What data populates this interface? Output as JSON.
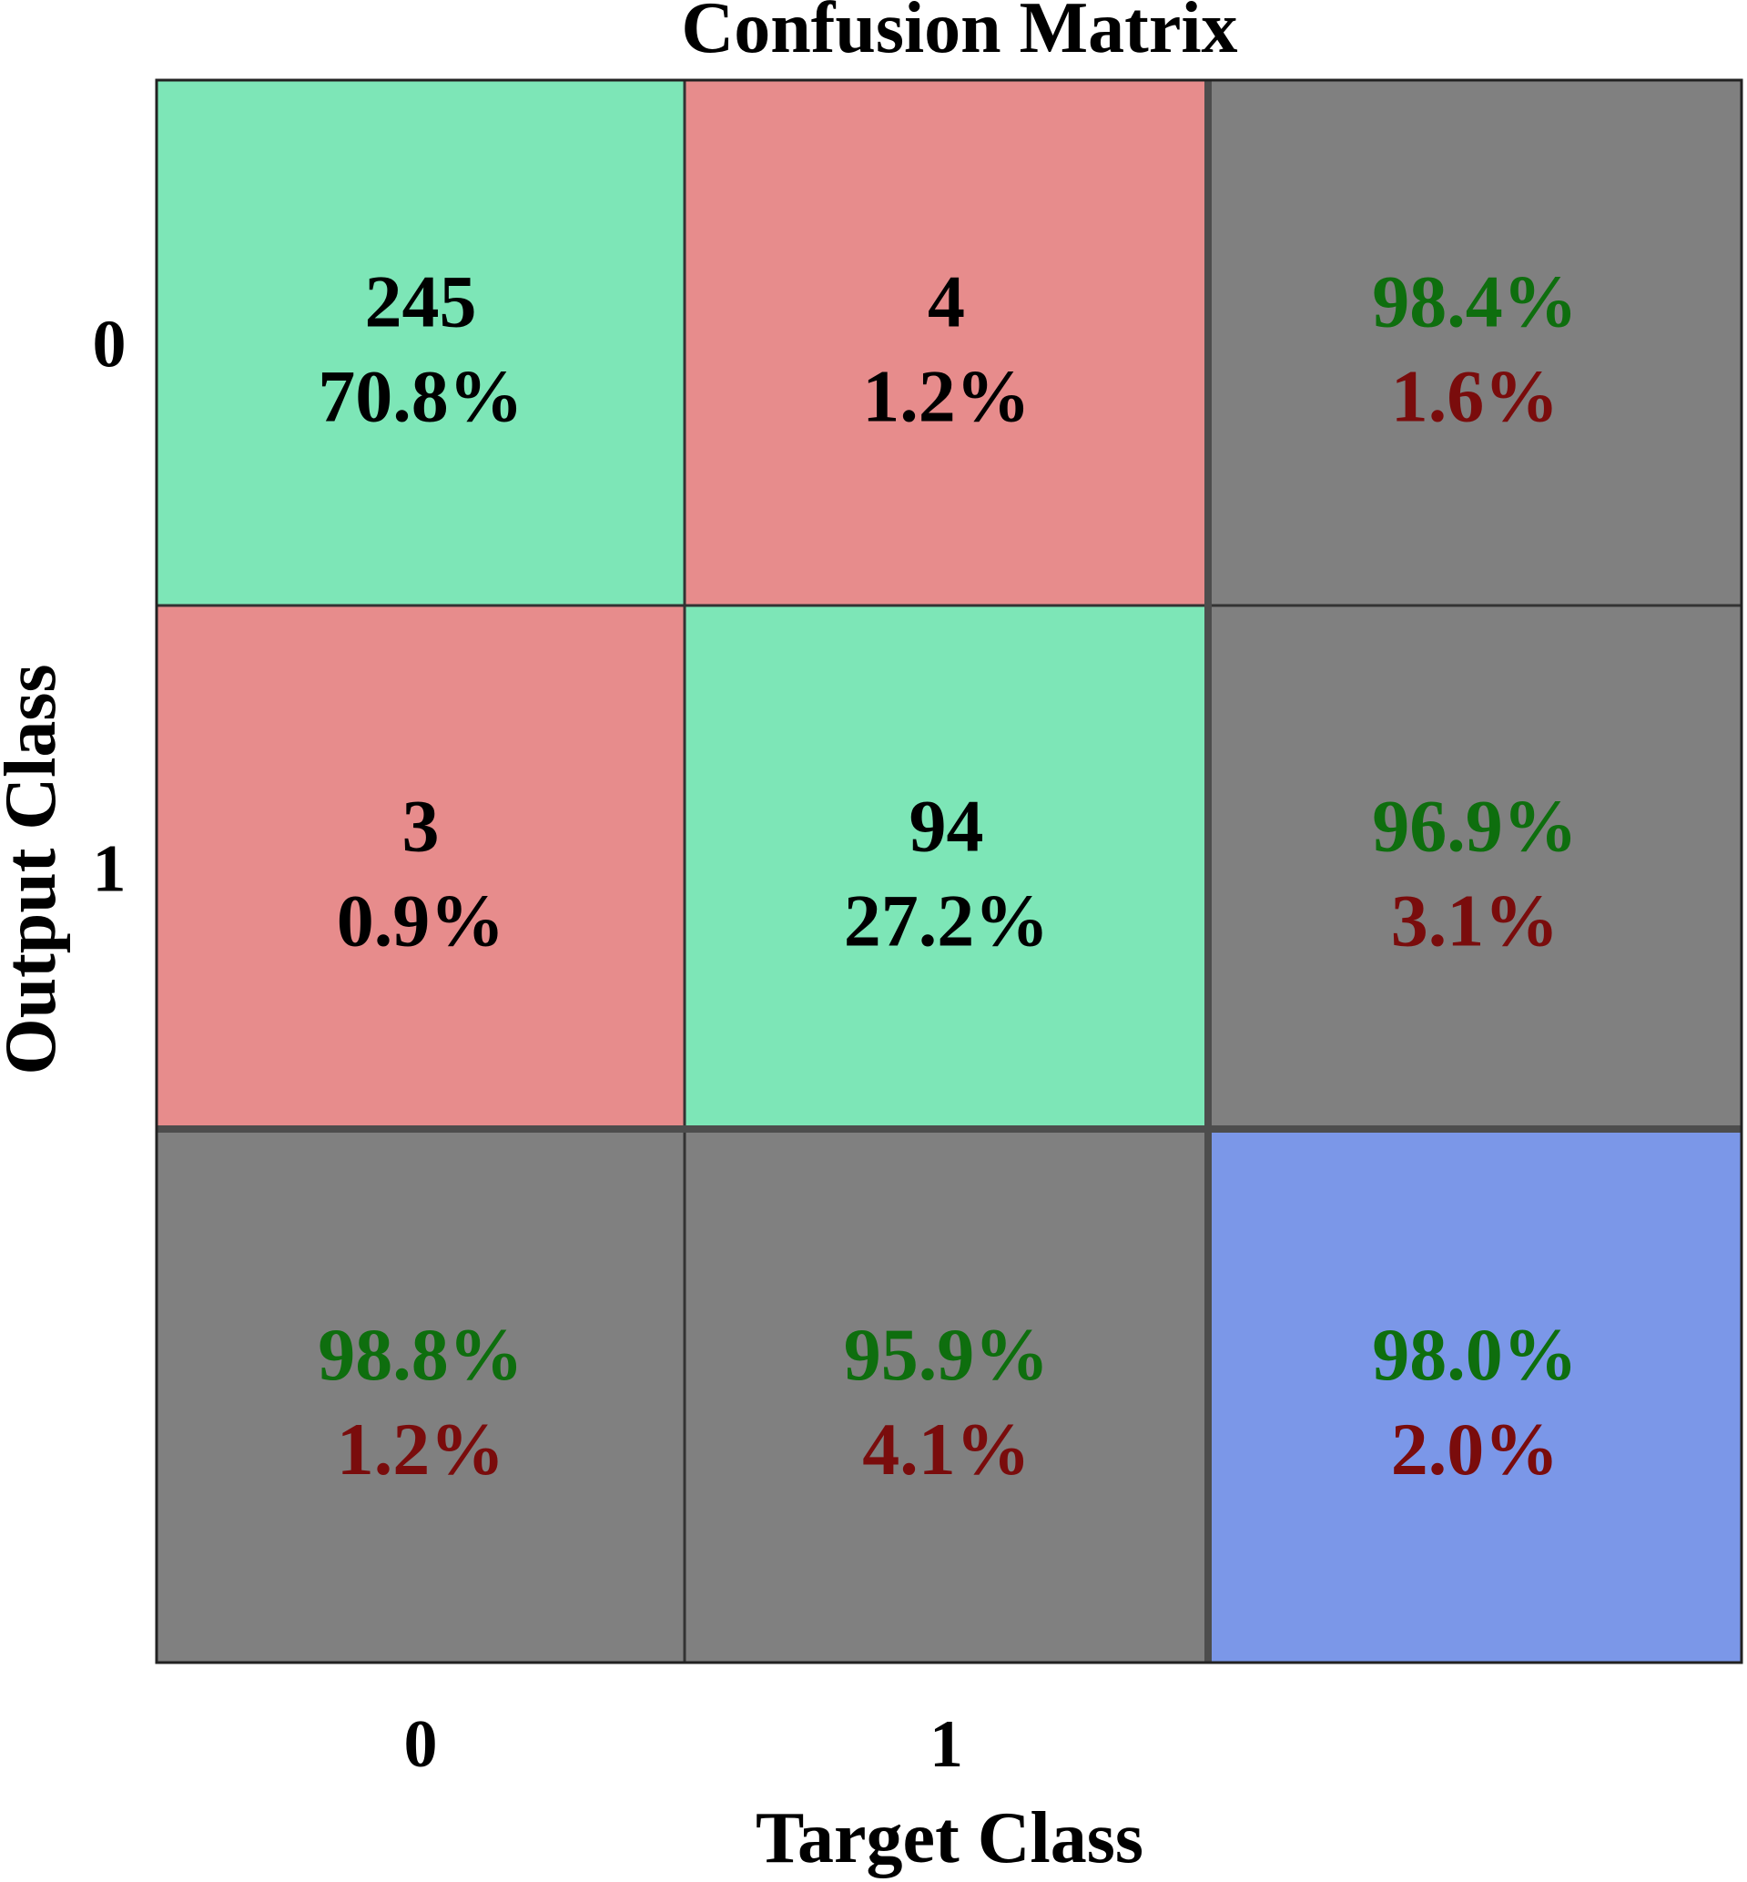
{
  "chart_data": {
    "type": "heatmap",
    "title": "Confusion Matrix",
    "xlabel": "Target Class",
    "ylabel": "Output Class",
    "x_tick_labels": [
      "0",
      "1"
    ],
    "y_tick_labels": [
      "0",
      "1"
    ],
    "cells": [
      [
        {
          "value": "245",
          "percent": "70.8%"
        },
        {
          "value": "4",
          "percent": "1.2%"
        }
      ],
      [
        {
          "value": "3",
          "percent": "0.9%"
        },
        {
          "value": "94",
          "percent": "27.2%"
        }
      ]
    ],
    "row_summary": [
      {
        "correct": "98.4%",
        "error": "1.6%"
      },
      {
        "correct": "96.9%",
        "error": "3.1%"
      }
    ],
    "column_summary": [
      {
        "correct": "98.8%",
        "error": "1.2%"
      },
      {
        "correct": "95.9%",
        "error": "4.1%"
      }
    ],
    "overall": {
      "correct": "98.0%",
      "error": "2.0%"
    },
    "colors": {
      "correct_cell": "#7de6b7",
      "incorrect_cell": "#e78c8c",
      "summary_cell": "#808080",
      "overall_cell": "#7b97e8",
      "correct_text": "#0e6e0e",
      "error_text": "#7a0c0c",
      "cell_text": "#000000",
      "grid_line": "#333333",
      "background": "#ffffff"
    }
  }
}
